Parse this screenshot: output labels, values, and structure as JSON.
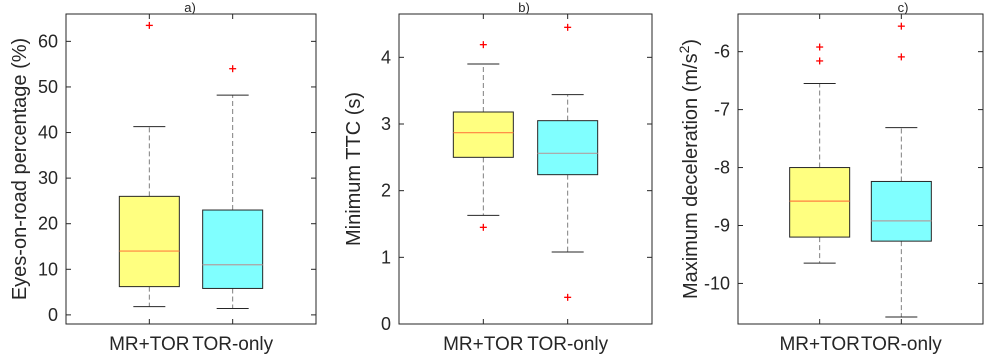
{
  "colors": {
    "mr_tor_box": "#ffff80",
    "tor_only_box": "#80ffff",
    "outlier": "#ff0000",
    "whisker": "#7f7f7f"
  },
  "chart_data": [
    {
      "type": "boxplot",
      "title": "a)",
      "ylabel": "Eyes-on-road percentage (%)",
      "ylabel_sup": "",
      "ylim": [
        -2,
        66
      ],
      "yticks": [
        0,
        10,
        20,
        30,
        40,
        50,
        60
      ],
      "categories": [
        "MR+TOR",
        "TOR-only"
      ],
      "boxes": [
        {
          "whisker_low": 1.8,
          "q1": 6.2,
          "median": 14.0,
          "q3": 26.0,
          "whisker_high": 41.3,
          "outliers": [
            63.5
          ],
          "color": "#ffff80",
          "median_color": "#ff8040"
        },
        {
          "whisker_low": 1.4,
          "q1": 5.8,
          "median": 11.0,
          "q3": 23.0,
          "whisker_high": 48.2,
          "outliers": [
            54.0
          ],
          "color": "#80ffff",
          "median_color": "#b0a0a0"
        }
      ]
    },
    {
      "type": "boxplot",
      "title": "b)",
      "ylabel": "Minimum TTC (s)",
      "ylabel_sup": "",
      "ylim": [
        0,
        4.65
      ],
      "yticks": [
        0,
        1,
        2,
        3,
        4
      ],
      "categories": [
        "MR+TOR",
        "TOR-only"
      ],
      "boxes": [
        {
          "whisker_low": 1.63,
          "q1": 2.5,
          "median": 2.87,
          "q3": 3.18,
          "whisker_high": 3.9,
          "outliers": [
            1.45,
            4.19
          ],
          "color": "#ffff80",
          "median_color": "#ff8040"
        },
        {
          "whisker_low": 1.08,
          "q1": 2.24,
          "median": 2.56,
          "q3": 3.05,
          "whisker_high": 3.44,
          "outliers": [
            0.4,
            4.45
          ],
          "color": "#80ffff",
          "median_color": "#b0a0a0"
        }
      ]
    },
    {
      "type": "boxplot",
      "title": "c)",
      "ylabel": "Maximum deceleration (m/s",
      "ylabel_sup": "2",
      "ylabel_tail": ")",
      "ylim": [
        -10.7,
        -5.35
      ],
      "yticks": [
        -10,
        -9,
        -8,
        -7,
        -6
      ],
      "categories": [
        "MR+TOR",
        "TOR-only"
      ],
      "boxes": [
        {
          "whisker_low": -9.65,
          "q1": -9.2,
          "median": -8.58,
          "q3": -8.0,
          "whisker_high": -6.55,
          "outliers": [
            -5.92,
            -6.16
          ],
          "color": "#ffff80",
          "median_color": "#ff8040"
        },
        {
          "whisker_low": -10.58,
          "q1": -9.27,
          "median": -8.92,
          "q3": -8.24,
          "whisker_high": -7.31,
          "outliers": [
            -5.56,
            -6.09
          ],
          "color": "#80ffff",
          "median_color": "#b0a0a0"
        }
      ]
    }
  ]
}
